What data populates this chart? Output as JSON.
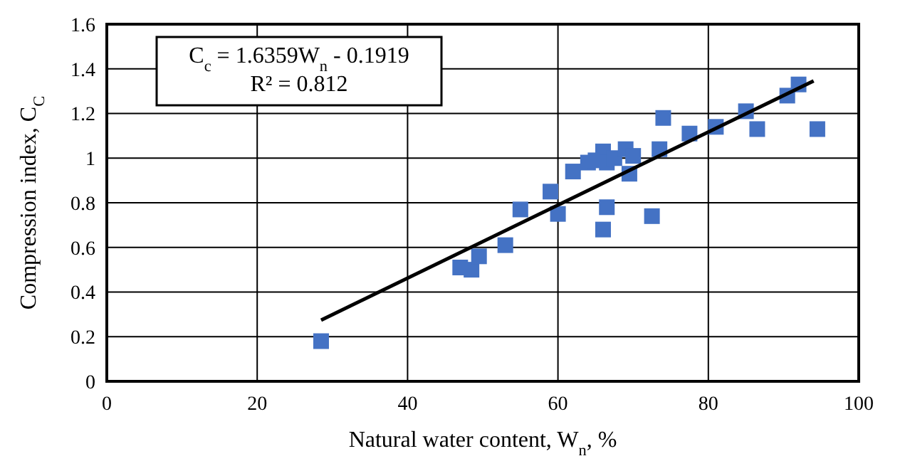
{
  "chart_data": {
    "type": "scatter",
    "xlabel": "Natural water content,  W$_{n}$, %",
    "ylabel": "Compression index, C$_{C}$",
    "annotations": [
      "C$_{c}$ = 1.6359W$_{n}$ - 0.1919",
      "R² = 0.812"
    ],
    "xlim": [
      0,
      100
    ],
    "xticks": [
      0,
      20,
      40,
      60,
      80,
      100
    ],
    "ylim": [
      0,
      1.6
    ],
    "yticks": [
      0,
      0.2,
      0.4,
      0.6,
      0.8,
      1,
      1.2,
      1.4,
      1.6
    ],
    "grid": true,
    "series": [
      {
        "color": "#4472c4",
        "marker": "square",
        "x": [
          28.5,
          47,
          48.5,
          49.5,
          53,
          55,
          59,
          60,
          62,
          64,
          65,
          66,
          66,
          66.5,
          66.5,
          67.5,
          69,
          69.5,
          70,
          72.5,
          73.5,
          74,
          77.5,
          81,
          85,
          86.5,
          90.5,
          92,
          94.5
        ],
        "values": [
          0.18,
          0.51,
          0.5,
          0.56,
          0.61,
          0.77,
          0.85,
          0.75,
          0.94,
          0.98,
          0.99,
          1.03,
          0.68,
          0.78,
          0.98,
          1.0,
          1.04,
          0.93,
          1.01,
          0.74,
          1.04,
          1.18,
          1.11,
          1.14,
          1.21,
          1.13,
          1.28,
          1.33,
          1.13
        ]
      },
      {
        "type": "line",
        "color": "#000000",
        "marker": "none",
        "x": [
          28.5,
          94
        ],
        "values": [
          0.274,
          1.346
        ]
      }
    ]
  }
}
